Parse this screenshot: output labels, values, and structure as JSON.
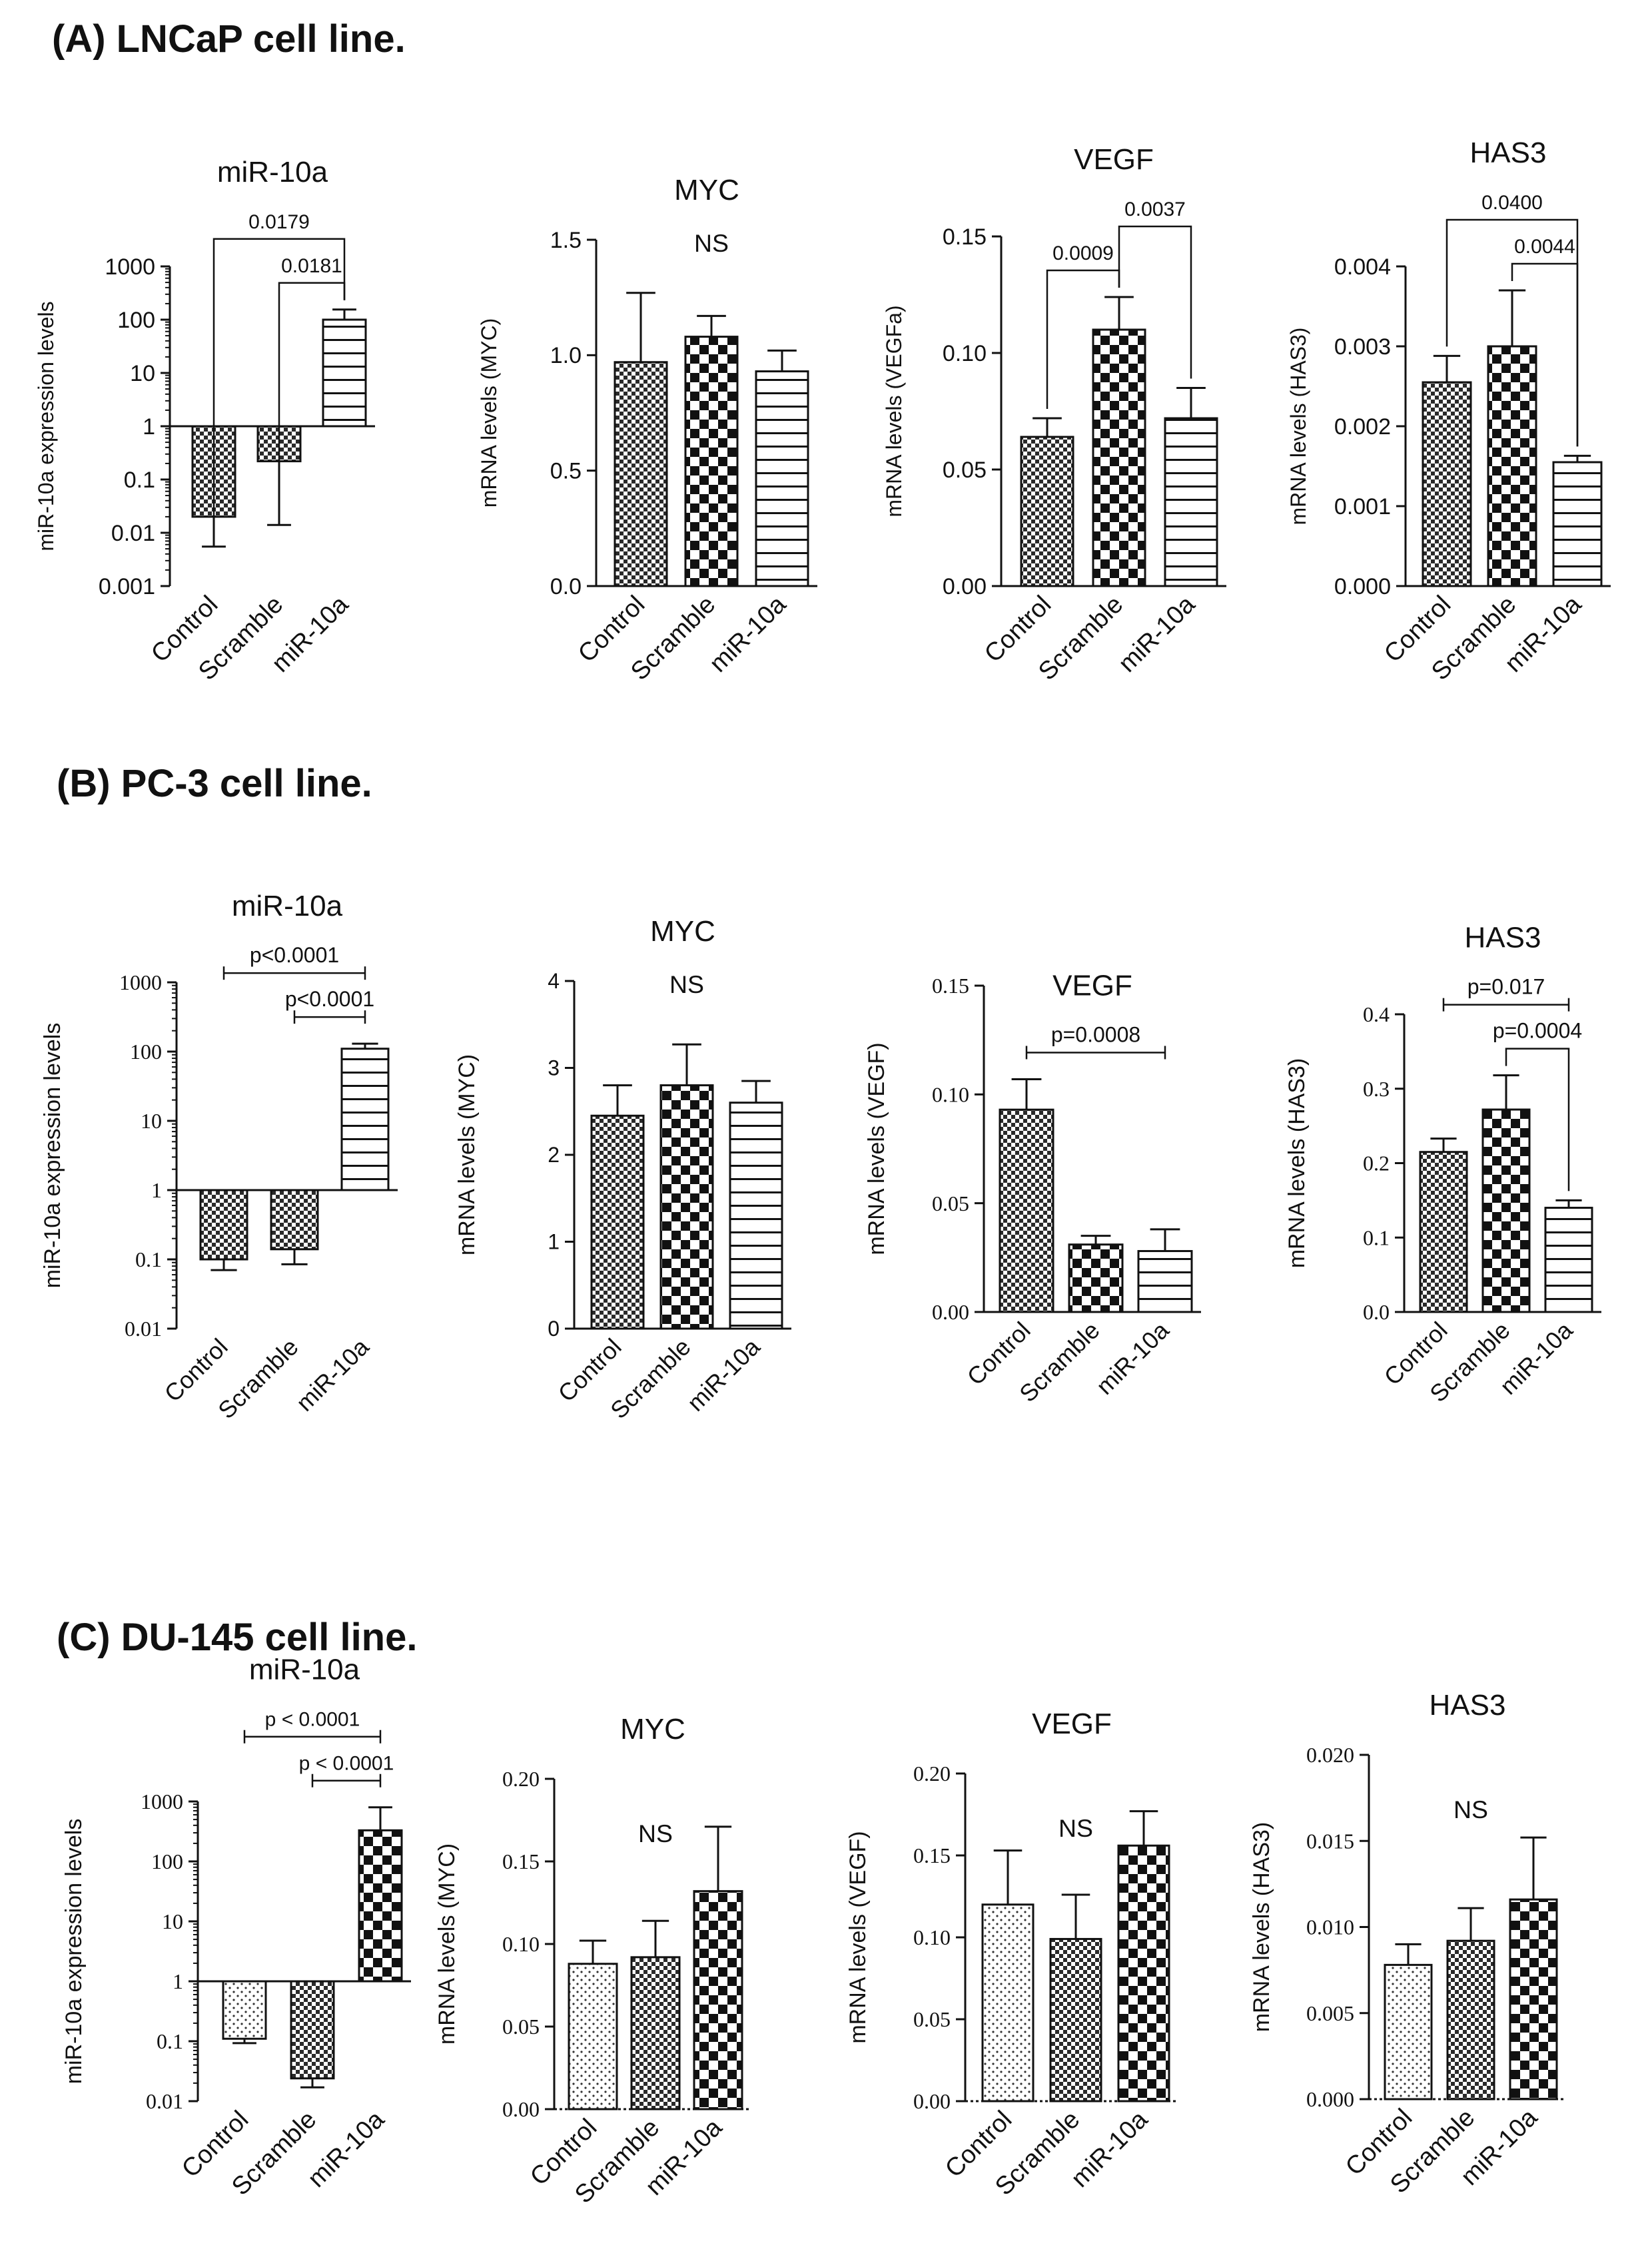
{
  "sections": [
    {
      "title": "(A) LNCaP cell line."
    },
    {
      "title": "(B) PC-3 cell line."
    },
    {
      "title": "(C) DU-145 cell line."
    }
  ],
  "chart_data": [
    {
      "id": "A1",
      "section": 0,
      "type": "bar",
      "scale": "log",
      "title": "miR-10a",
      "ylabel": "miR-10a expression levels",
      "categories": [
        "Control",
        "Scramble",
        "miR-10a"
      ],
      "values": [
        0.02,
        0.22,
        100
      ],
      "errors": [
        0.0055,
        0.014,
        155
      ],
      "ylim": [
        0.001,
        1000
      ],
      "ticks": [
        0.001,
        0.01,
        0.1,
        1,
        10,
        100,
        1000
      ],
      "tick_labels": [
        "0.001",
        "0.01",
        "0.1",
        "1",
        "10",
        "100",
        "1000"
      ],
      "patterns": [
        "checker_fine",
        "checker_fine",
        "hstripe"
      ],
      "annotations": [
        {
          "text": "0.0179",
          "from": 0,
          "to": 2,
          "style": "bracket"
        },
        {
          "text": "0.0181",
          "from": 1,
          "to": 2,
          "style": "bracket"
        }
      ]
    },
    {
      "id": "A2",
      "section": 0,
      "type": "bar",
      "scale": "linear",
      "title": "MYC",
      "ylabel": "mRNA levels (MYC)",
      "categories": [
        "Control",
        "Scramble",
        "miR-10a"
      ],
      "values": [
        0.97,
        1.08,
        0.93
      ],
      "errors": [
        1.27,
        1.17,
        1.02
      ],
      "ylim": [
        0,
        1.5
      ],
      "ticks": [
        0,
        0.5,
        1.0,
        1.5
      ],
      "tick_labels": [
        "0.0",
        "0.5",
        "1.0",
        "1.5"
      ],
      "patterns": [
        "checker_fine",
        "checker_big",
        "hstripe"
      ],
      "annotations": [
        {
          "text": "NS",
          "style": "text"
        }
      ]
    },
    {
      "id": "A3",
      "section": 0,
      "type": "bar",
      "scale": "linear",
      "title": "VEGF",
      "ylabel": "mRNA levels (VEGFa)",
      "categories": [
        "Control",
        "Scramble",
        "miR-10a"
      ],
      "values": [
        0.064,
        0.11,
        0.072
      ],
      "errors": [
        0.072,
        0.124,
        0.085
      ],
      "ylim": [
        0,
        0.15
      ],
      "ticks": [
        0,
        0.05,
        0.1,
        0.15
      ],
      "tick_labels": [
        "0.00",
        "0.05",
        "0.10",
        "0.15"
      ],
      "patterns": [
        "checker_fine",
        "checker_big",
        "hstripe"
      ],
      "annotations": [
        {
          "text": "0.0009",
          "from": 0,
          "to": 1,
          "style": "bracket"
        },
        {
          "text": "0.0037",
          "from": 1,
          "to": 2,
          "style": "bracket"
        }
      ]
    },
    {
      "id": "A4",
      "section": 0,
      "type": "bar",
      "scale": "linear",
      "title": "HAS3",
      "ylabel": "mRNA levels (HAS3)",
      "categories": [
        "Control",
        "Scramble",
        "miR-10a"
      ],
      "values": [
        0.00255,
        0.003,
        0.00155
      ],
      "errors": [
        0.00288,
        0.0037,
        0.00163
      ],
      "ylim": [
        0,
        0.004
      ],
      "ticks": [
        0,
        0.001,
        0.002,
        0.003,
        0.004
      ],
      "tick_labels": [
        "0.000",
        "0.001",
        "0.002",
        "0.003",
        "0.004"
      ],
      "patterns": [
        "checker_fine",
        "checker_big",
        "hstripe"
      ],
      "annotations": [
        {
          "text": "0.0400",
          "from": 0,
          "to": 2,
          "style": "bracket"
        },
        {
          "text": "0.0044",
          "from": 1,
          "to": 2,
          "style": "bracket"
        }
      ]
    },
    {
      "id": "B1",
      "section": 1,
      "type": "bar",
      "scale": "log",
      "title": "miR-10a",
      "ylabel": "miR-10a expression levels",
      "categories": [
        "Control",
        "Scramble",
        "miR-10a"
      ],
      "values": [
        0.1,
        0.14,
        110
      ],
      "errors": [
        0.07,
        0.085,
        130
      ],
      "ylim": [
        0.01,
        1000
      ],
      "ticks": [
        0.01,
        0.1,
        1,
        10,
        100,
        1000
      ],
      "tick_labels": [
        "0.01",
        "0.1",
        "1",
        "10",
        "100",
        "1000"
      ],
      "patterns": [
        "checker_fine",
        "checker_fine",
        "hstripe"
      ],
      "annotations": [
        {
          "text": "p<0.0001",
          "from": 0,
          "to": 2,
          "style": "line"
        },
        {
          "text": "p<0.0001",
          "from": 1,
          "to": 2,
          "style": "line"
        }
      ]
    },
    {
      "id": "B2",
      "section": 1,
      "type": "bar",
      "scale": "linear",
      "title": "MYC",
      "ylabel": "mRNA levels (MYC)",
      "categories": [
        "Control",
        "Scramble",
        "miR-10a"
      ],
      "values": [
        2.45,
        2.8,
        2.6
      ],
      "errors": [
        2.8,
        3.27,
        2.85
      ],
      "ylim": [
        0,
        4
      ],
      "ticks": [
        0,
        1,
        2,
        3,
        4
      ],
      "tick_labels": [
        "0",
        "1",
        "2",
        "3",
        "4"
      ],
      "patterns": [
        "checker_fine",
        "checker_big",
        "hstripe"
      ],
      "annotations": [
        {
          "text": "NS",
          "style": "text"
        }
      ]
    },
    {
      "id": "B3",
      "section": 1,
      "type": "bar",
      "scale": "linear",
      "title": "VEGF",
      "ylabel": "mRNA levels (VEGF)",
      "categories": [
        "Control",
        "Scramble",
        "miR-10a"
      ],
      "values": [
        0.093,
        0.031,
        0.028
      ],
      "errors": [
        0.107,
        0.035,
        0.038
      ],
      "ylim": [
        0,
        0.15
      ],
      "ticks": [
        0,
        0.05,
        0.1,
        0.15
      ],
      "tick_labels": [
        "0.00",
        "0.05",
        "0.10",
        "0.15"
      ],
      "patterns": [
        "checker_fine",
        "checker_big",
        "hstripe"
      ],
      "annotations": [
        {
          "text": "p=0.0008",
          "from": 0,
          "to": 2,
          "style": "line"
        }
      ]
    },
    {
      "id": "B4",
      "section": 1,
      "type": "bar",
      "scale": "linear",
      "title": "HAS3",
      "ylabel": "mRNA levels (HAS3)",
      "categories": [
        "Control",
        "Scramble",
        "miR-10a"
      ],
      "values": [
        0.215,
        0.272,
        0.14
      ],
      "errors": [
        0.233,
        0.318,
        0.15
      ],
      "ylim": [
        0,
        0.4
      ],
      "ticks": [
        0,
        0.1,
        0.2,
        0.3,
        0.4
      ],
      "tick_labels": [
        "0.0",
        "0.1",
        "0.2",
        "0.3",
        "0.4"
      ],
      "patterns": [
        "checker_fine",
        "checker_big",
        "hstripe"
      ],
      "annotations": [
        {
          "text": "p=0.017",
          "from": 0,
          "to": 2,
          "style": "line"
        },
        {
          "text": "p=0.0004",
          "from": 1,
          "to": 2,
          "style": "bracket"
        }
      ]
    },
    {
      "id": "C1",
      "section": 2,
      "type": "bar",
      "scale": "log",
      "title": "miR-10a",
      "ylabel": "miR-10a expression levels",
      "categories": [
        "Control",
        "Scramble",
        "miR-10a"
      ],
      "values": [
        0.11,
        0.024,
        330
      ],
      "errors": [
        0.093,
        0.017,
        800
      ],
      "ylim": [
        0.01,
        1000
      ],
      "ticks": [
        0.01,
        0.1,
        1,
        10,
        100,
        1000
      ],
      "tick_labels": [
        "0.01",
        "0.1",
        "1",
        "10",
        "100",
        "1000"
      ],
      "patterns": [
        "dots",
        "checker_fine",
        "checker_big"
      ],
      "annotations": [
        {
          "text": "p < 0.0001",
          "from": 0,
          "to": 2,
          "style": "line"
        },
        {
          "text": "p < 0.0001",
          "from": 1,
          "to": 2,
          "style": "line"
        }
      ]
    },
    {
      "id": "C2",
      "section": 2,
      "type": "bar",
      "scale": "linear",
      "title": "MYC",
      "ylabel": "mRNA levels (MYC)",
      "categories": [
        "Control",
        "Scramble",
        "miR-10a"
      ],
      "values": [
        0.088,
        0.092,
        0.132
      ],
      "errors": [
        0.102,
        0.114,
        0.171
      ],
      "ylim": [
        0,
        0.2
      ],
      "ticks": [
        0,
        0.05,
        0.1,
        0.15,
        0.2
      ],
      "tick_labels": [
        "0.00",
        "0.05",
        "0.10",
        "0.15",
        "0.20"
      ],
      "patterns": [
        "dots",
        "checker_fine",
        "checker_big"
      ],
      "annotations": [
        {
          "text": "NS",
          "style": "text"
        }
      ]
    },
    {
      "id": "C3",
      "section": 2,
      "type": "bar",
      "scale": "linear",
      "title": "VEGF",
      "ylabel": "mRNA levels (VEGF)",
      "categories": [
        "Control",
        "Scramble",
        "miR-10a"
      ],
      "values": [
        0.12,
        0.099,
        0.156
      ],
      "errors": [
        0.153,
        0.126,
        0.177
      ],
      "ylim": [
        0,
        0.2
      ],
      "ticks": [
        0,
        0.05,
        0.1,
        0.15,
        0.2
      ],
      "tick_labels": [
        "0.00",
        "0.05",
        "0.10",
        "0.15",
        "0.20"
      ],
      "patterns": [
        "dots",
        "checker_fine",
        "checker_big"
      ],
      "annotations": [
        {
          "text": "NS",
          "style": "text"
        }
      ]
    },
    {
      "id": "C4",
      "section": 2,
      "type": "bar",
      "scale": "linear",
      "title": "HAS3",
      "ylabel": "mRNA levels (HAS3)",
      "categories": [
        "Control",
        "Scramble",
        "miR-10a"
      ],
      "values": [
        0.0078,
        0.0092,
        0.0116
      ],
      "errors": [
        0.009,
        0.0111,
        0.0152
      ],
      "ylim": [
        0,
        0.02
      ],
      "ticks": [
        0,
        0.005,
        0.01,
        0.015,
        0.02
      ],
      "tick_labels": [
        "0.000",
        "0.005",
        "0.010",
        "0.015",
        "0.020"
      ],
      "patterns": [
        "dots",
        "checker_fine",
        "checker_big"
      ],
      "annotations": [
        {
          "text": "NS",
          "style": "text"
        }
      ]
    }
  ]
}
